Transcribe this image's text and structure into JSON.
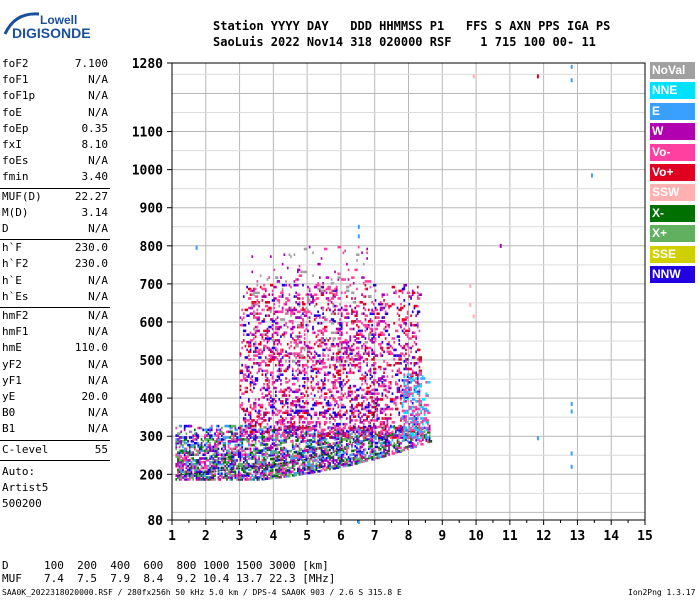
{
  "logo": {
    "line1": "Lowell",
    "line2": "DIGISONDE"
  },
  "header": {
    "row1": "Station YYYY DAY   DDD HHMMSS P1   FFS S AXN PPS IGA PS",
    "row2": "SaoLuis 2022 Nov14 318 020000 RSF    1 715 100 00- 11"
  },
  "params_group1": [
    {
      "k": "foF2",
      "v": "7.100"
    },
    {
      "k": "foF1",
      "v": "N/A"
    },
    {
      "k": "foF1p",
      "v": "N/A"
    },
    {
      "k": "foE",
      "v": "N/A"
    },
    {
      "k": "foEp",
      "v": "0.35"
    },
    {
      "k": "fxI",
      "v": "8.10"
    },
    {
      "k": "foEs",
      "v": "N/A"
    },
    {
      "k": "fmin",
      "v": "3.40"
    }
  ],
  "params_group2": [
    {
      "k": "MUF(D)",
      "v": "22.27"
    },
    {
      "k": "M(D)",
      "v": "3.14"
    },
    {
      "k": "D",
      "v": "N/A"
    }
  ],
  "params_group3": [
    {
      "k": "h`F",
      "v": "230.0"
    },
    {
      "k": "h`F2",
      "v": "230.0"
    },
    {
      "k": "h`E",
      "v": "N/A"
    },
    {
      "k": "h`Es",
      "v": "N/A"
    }
  ],
  "params_group4": [
    {
      "k": "hmF2",
      "v": "N/A"
    },
    {
      "k": "hmF1",
      "v": "N/A"
    },
    {
      "k": "hmE",
      "v": "110.0"
    },
    {
      "k": "yF2",
      "v": "N/A"
    },
    {
      "k": "yF1",
      "v": "N/A"
    },
    {
      "k": "yE",
      "v": "20.0"
    },
    {
      "k": "B0",
      "v": "N/A"
    },
    {
      "k": "B1",
      "v": "N/A"
    }
  ],
  "clevel": {
    "k": "C-level",
    "v": "55"
  },
  "auto": [
    "Auto:",
    "Artist5",
    "500200"
  ],
  "bottom": {
    "d_label": "D",
    "d_values": "100  200  400  600  800 1000 1500 3000 [km]",
    "muf_label": "MUF",
    "muf_values": "7.4  7.5  7.9  8.4  9.2 10.4 13.7 22.3 [MHz]"
  },
  "footer": {
    "left": "SAA0K_2022318020000.RSF / 280fx256h 50 kHz 5.0 km / DPS-4 SAA0K 903 / 2.6 S 315.8 E",
    "right": "Ion2Png 1.3.17"
  },
  "legend": [
    {
      "label": "NoVal",
      "color": "#a0a0a0"
    },
    {
      "label": "NNE",
      "color": "#00e0ff"
    },
    {
      "label": "E",
      "color": "#3aa0ff"
    },
    {
      "label": "W",
      "color": "#b000b0"
    },
    {
      "label": "Vo-",
      "color": "#ff40a0"
    },
    {
      "label": "Vo+",
      "color": "#e00020"
    },
    {
      "label": "SSW",
      "color": "#ffb0b0"
    },
    {
      "label": "X-",
      "color": "#007000"
    },
    {
      "label": "X+",
      "color": "#60b060"
    },
    {
      "label": "SSE",
      "color": "#d0d000"
    },
    {
      "label": "NNW",
      "color": "#2000e0"
    }
  ],
  "chart_data": {
    "type": "scatter",
    "title": "",
    "xlabel": "",
    "ylabel": "",
    "xlim": [
      1,
      15
    ],
    "ylim": [
      80,
      1280
    ],
    "x_ticks": [
      "1",
      "2",
      "3",
      "4",
      "5",
      "6",
      "7",
      "8",
      "9",
      "10",
      "11",
      "12",
      "13",
      "14",
      "15"
    ],
    "y_ticks": [
      {
        "value": 1280,
        "label": "1280"
      },
      {
        "value": 1100,
        "label": "1100"
      },
      {
        "value": 1000,
        "label": "1000"
      },
      {
        "value": 900,
        "label": "900"
      },
      {
        "value": 800,
        "label": "800"
      },
      {
        "value": 700,
        "label": "700"
      },
      {
        "value": 600,
        "label": "600"
      },
      {
        "value": 500,
        "label": "500"
      },
      {
        "value": 400,
        "label": "400"
      },
      {
        "value": 300,
        "label": "300"
      },
      {
        "value": 200,
        "label": "200"
      },
      {
        "value": 80,
        "label": "80"
      }
    ],
    "grid": true,
    "trace": [
      [
        1.2,
        198
      ],
      [
        2,
        205
      ],
      [
        3,
        215
      ],
      [
        4,
        225
      ],
      [
        5,
        240
      ],
      [
        5.8,
        258
      ],
      [
        6.4,
        285
      ],
      [
        6.8,
        320
      ],
      [
        7,
        360
      ],
      [
        7.1,
        400
      ]
    ],
    "regions": [
      {
        "name": "F-trace base",
        "x": [
          1.1,
          8.6
        ],
        "y": [
          190,
          330
        ],
        "colors": [
          "#2000e0",
          "#b000b0",
          "#ff40a0",
          "#007000",
          "#60b060",
          "#3aa0ff"
        ],
        "density": 0.75
      },
      {
        "name": "spread-F",
        "x": [
          3.0,
          8.3
        ],
        "y": [
          300,
          700
        ],
        "colors": [
          "#ff40a0",
          "#b000b0",
          "#ff40a0",
          "#e00020",
          "#2000e0"
        ],
        "density": 0.3
      },
      {
        "name": "high spread",
        "x": [
          3.3,
          6.8
        ],
        "y": [
          500,
          800
        ],
        "colors": [
          "#b000b0",
          "#ff40a0",
          "#a0a0a0"
        ],
        "density": 0.08
      },
      {
        "name": "edge",
        "x": [
          7.8,
          8.6
        ],
        "y": [
          300,
          470
        ],
        "colors": [
          "#3aa0ff",
          "#00e0ff",
          "#ff40a0"
        ],
        "density": 0.4
      }
    ]
  }
}
